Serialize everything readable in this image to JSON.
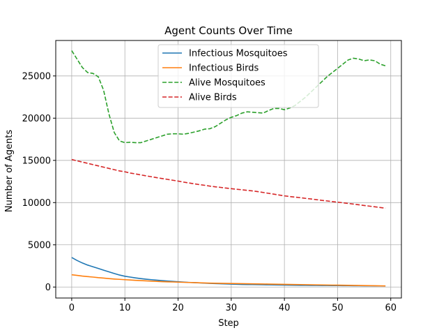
{
  "chart_data": {
    "type": "line",
    "title": "Agent Counts Over Time",
    "xlabel": "Step",
    "ylabel": "Number of Agents",
    "xlim": [
      -3,
      62
    ],
    "ylim": [
      -1300,
      29200
    ],
    "xticks": [
      0,
      10,
      20,
      30,
      40,
      50,
      60
    ],
    "yticks": [
      0,
      5000,
      10000,
      15000,
      20000,
      25000
    ],
    "grid": true,
    "legend_position": "upper-center",
    "x": [
      0,
      1,
      2,
      3,
      4,
      5,
      6,
      7,
      8,
      9,
      10,
      11,
      12,
      13,
      14,
      15,
      16,
      17,
      18,
      19,
      20,
      21,
      22,
      23,
      24,
      25,
      26,
      27,
      28,
      29,
      30,
      31,
      32,
      33,
      34,
      35,
      36,
      37,
      38,
      39,
      40,
      41,
      42,
      43,
      44,
      45,
      46,
      47,
      48,
      49,
      50,
      51,
      52,
      53,
      54,
      55,
      56,
      57,
      58,
      59
    ],
    "series": [
      {
        "name": "Infectious Mosquitoes",
        "color": "#1f77b4",
        "style": "solid",
        "values": [
          3500,
          3150,
          2850,
          2600,
          2400,
          2200,
          2000,
          1800,
          1600,
          1420,
          1280,
          1180,
          1080,
          1000,
          930,
          870,
          810,
          760,
          710,
          670,
          630,
          590,
          550,
          520,
          490,
          460,
          430,
          410,
          390,
          370,
          350,
          330,
          310,
          300,
          290,
          280,
          270,
          260,
          250,
          240,
          230,
          220,
          210,
          205,
          200,
          195,
          190,
          185,
          180,
          175,
          170,
          165,
          160,
          155,
          150,
          145,
          140,
          130,
          125,
          120
        ]
      },
      {
        "name": "Infectious Birds",
        "color": "#ff7f0e",
        "style": "solid",
        "values": [
          1450,
          1380,
          1300,
          1240,
          1180,
          1110,
          1060,
          1000,
          950,
          910,
          870,
          830,
          790,
          760,
          730,
          700,
          670,
          640,
          620,
          600,
          580,
          560,
          540,
          520,
          500,
          480,
          460,
          450,
          440,
          430,
          420,
          410,
          400,
          390,
          380,
          370,
          360,
          350,
          340,
          330,
          320,
          310,
          300,
          290,
          280,
          270,
          260,
          250,
          240,
          230,
          220,
          210,
          200,
          190,
          180,
          170,
          160,
          150,
          140,
          130
        ]
      },
      {
        "name": "Alive Mosquitoes",
        "color": "#2ca02c",
        "style": "dashed",
        "values": [
          28000,
          27000,
          26000,
          25400,
          25300,
          24900,
          23300,
          20500,
          18300,
          17300,
          17100,
          17150,
          17100,
          17100,
          17300,
          17500,
          17700,
          17900,
          18100,
          18150,
          18150,
          18100,
          18200,
          18350,
          18500,
          18700,
          18750,
          19000,
          19400,
          19800,
          20100,
          20300,
          20600,
          20750,
          20700,
          20650,
          20600,
          20900,
          21150,
          21150,
          21000,
          21200,
          21500,
          22000,
          22500,
          23100,
          23700,
          24300,
          24900,
          25400,
          25900,
          26400,
          26900,
          27100,
          27000,
          26800,
          26900,
          26800,
          26400,
          26200
        ]
      },
      {
        "name": "Alive Birds",
        "color": "#d62728",
        "style": "dashed",
        "values": [
          15100,
          14950,
          14800,
          14650,
          14500,
          14350,
          14200,
          14050,
          13900,
          13750,
          13650,
          13500,
          13400,
          13280,
          13170,
          13060,
          12950,
          12850,
          12750,
          12650,
          12550,
          12430,
          12330,
          12230,
          12130,
          12050,
          11950,
          11870,
          11800,
          11720,
          11650,
          11580,
          11520,
          11450,
          11380,
          11300,
          11200,
          11100,
          11000,
          10900,
          10800,
          10720,
          10650,
          10580,
          10500,
          10430,
          10350,
          10270,
          10200,
          10120,
          10050,
          9980,
          9900,
          9820,
          9740,
          9660,
          9580,
          9500,
          9420,
          9340
        ]
      }
    ]
  }
}
